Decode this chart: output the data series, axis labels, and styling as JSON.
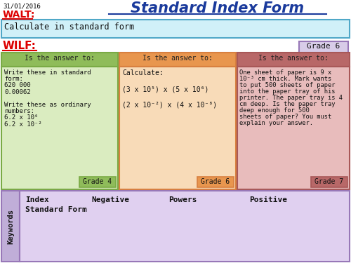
{
  "title": "Standard Index Form",
  "date": "31/01/2016",
  "walt_label": "WALT:",
  "walt_text": "Calculate in standard form",
  "wilf_label": "WILF:",
  "grade6_label": "Grade 6",
  "col1_header": "Is the answer to:",
  "col2_header": "Is the answer to:",
  "col3_header": "Is the answer to:",
  "col1_lines": [
    "Write these in standard",
    "form:",
    "620 000",
    "0.00062",
    "",
    "Write these as ordinary",
    "numbers:",
    "6.2 x 10⁶",
    "6.2 x 10⁻²"
  ],
  "col2_lines": [
    "Calculate:",
    "",
    "(3 x 10⁵) x (5 x 10⁶)",
    "",
    "(2 x 10⁻²) x (4 x 10⁻⁸)"
  ],
  "col3_lines": [
    "One sheet of paper is 9 x",
    "10⁻³ cm thick. Mark wants",
    "to put 500 sheets of paper",
    "into the paper tray of his",
    "printer. The paper tray is 4",
    "cm deep. Is the paper tray",
    "deep enough for 500",
    "sheets of paper? You must",
    "explain your answer."
  ],
  "col1_grade": "Grade 4",
  "col2_grade": "Grade 6",
  "col3_grade": "Grade 7",
  "keywords_label": "Keywords",
  "kw_row1": [
    "Index",
    "Negative",
    "Powers",
    "Positive"
  ],
  "kw_row2": "Standard Form",
  "col1_header_bg": "#8fbc5a",
  "col1_body_bg": "#daecc0",
  "col1_border": "#7aaa45",
  "col1_grade_bg": "#8fbc5a",
  "col2_header_bg": "#e8964e",
  "col2_body_bg": "#f8dbb8",
  "col2_border": "#d88040",
  "col2_grade_bg": "#e8964e",
  "col3_header_bg": "#b86868",
  "col3_body_bg": "#e8bcbc",
  "col3_border": "#a85858",
  "col3_grade_bg": "#b86868",
  "walt_box_bg": "#d0f0f8",
  "walt_box_border": "#50a8c8",
  "grade6_box_bg": "#d8cce8",
  "grade6_box_border": "#9878b8",
  "keywords_sidebar_bg": "#c0aed8",
  "keywords_body_bg": "#e0d0f0",
  "keywords_border": "#9878b8",
  "bg_color": "#ffffff",
  "title_color": "#1a3a9c",
  "walt_color": "#dd0000",
  "wilf_color": "#dd0000",
  "date_color": "#000000",
  "header_text_color": "#222222",
  "body_text_color": "#111111",
  "grade_text_color": "#111111"
}
